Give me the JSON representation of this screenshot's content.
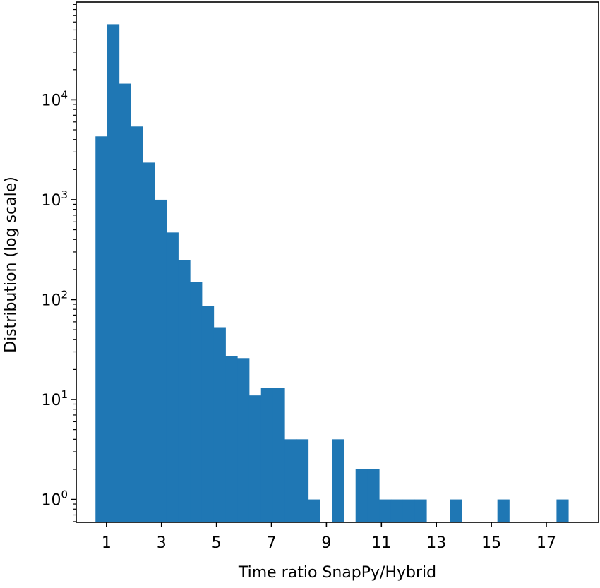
{
  "chart_data": {
    "type": "bar",
    "title": "",
    "xlabel": "Time ratio SnapPy/Hybrid",
    "ylabel": "Distribution (log scale)",
    "yscale": "log",
    "grid": false,
    "xlim": [
      -0.1,
      18.9
    ],
    "ylim": [
      0.59,
      95000
    ],
    "bin_width": 0.43,
    "x_ticks": [
      1,
      3,
      5,
      7,
      9,
      11,
      13,
      15,
      17
    ],
    "x_tick_labels": [
      "1",
      "3",
      "5",
      "7",
      "9",
      11,
      "13",
      "15",
      "17"
    ],
    "y_ticks": [
      1,
      10,
      100,
      1000,
      10000
    ],
    "y_tick_labels": [
      {
        "base": "10",
        "exp": "0"
      },
      {
        "base": "10",
        "exp": "1"
      },
      {
        "base": "10",
        "exp": "2"
      },
      {
        "base": "10",
        "exp": "3"
      },
      {
        "base": "10",
        "exp": "4"
      }
    ],
    "bars": [
      {
        "x0": 0.6,
        "x1": 1.03,
        "count": 4300
      },
      {
        "x0": 1.03,
        "x1": 1.46,
        "count": 57000
      },
      {
        "x0": 1.46,
        "x1": 1.89,
        "count": 14500
      },
      {
        "x0": 1.89,
        "x1": 2.32,
        "count": 5400
      },
      {
        "x0": 2.32,
        "x1": 2.75,
        "count": 2350
      },
      {
        "x0": 2.75,
        "x1": 3.18,
        "count": 1000
      },
      {
        "x0": 3.18,
        "x1": 3.61,
        "count": 470
      },
      {
        "x0": 3.61,
        "x1": 4.04,
        "count": 250
      },
      {
        "x0": 4.04,
        "x1": 4.47,
        "count": 150
      },
      {
        "x0": 4.47,
        "x1": 4.9,
        "count": 87
      },
      {
        "x0": 4.9,
        "x1": 5.33,
        "count": 53
      },
      {
        "x0": 5.33,
        "x1": 5.76,
        "count": 27
      },
      {
        "x0": 5.76,
        "x1": 6.19,
        "count": 26
      },
      {
        "x0": 6.19,
        "x1": 6.62,
        "count": 11
      },
      {
        "x0": 6.62,
        "x1": 7.05,
        "count": 13
      },
      {
        "x0": 7.05,
        "x1": 7.48,
        "count": 13
      },
      {
        "x0": 7.48,
        "x1": 7.91,
        "count": 4
      },
      {
        "x0": 7.91,
        "x1": 8.34,
        "count": 4
      },
      {
        "x0": 8.34,
        "x1": 8.77,
        "count": 1
      },
      {
        "x0": 9.2,
        "x1": 9.63,
        "count": 4
      },
      {
        "x0": 10.06,
        "x1": 10.49,
        "count": 2
      },
      {
        "x0": 10.49,
        "x1": 10.92,
        "count": 2
      },
      {
        "x0": 10.92,
        "x1": 11.35,
        "count": 1
      },
      {
        "x0": 11.35,
        "x1": 11.78,
        "count": 1
      },
      {
        "x0": 11.78,
        "x1": 12.21,
        "count": 1
      },
      {
        "x0": 12.21,
        "x1": 12.64,
        "count": 1
      },
      {
        "x0": 13.5,
        "x1": 13.93,
        "count": 1
      },
      {
        "x0": 15.22,
        "x1": 15.65,
        "count": 1
      },
      {
        "x0": 17.37,
        "x1": 17.8,
        "count": 1
      }
    ],
    "colors": {
      "bar": "#1f77b4",
      "axis": "#000000",
      "background": "#ffffff"
    }
  }
}
